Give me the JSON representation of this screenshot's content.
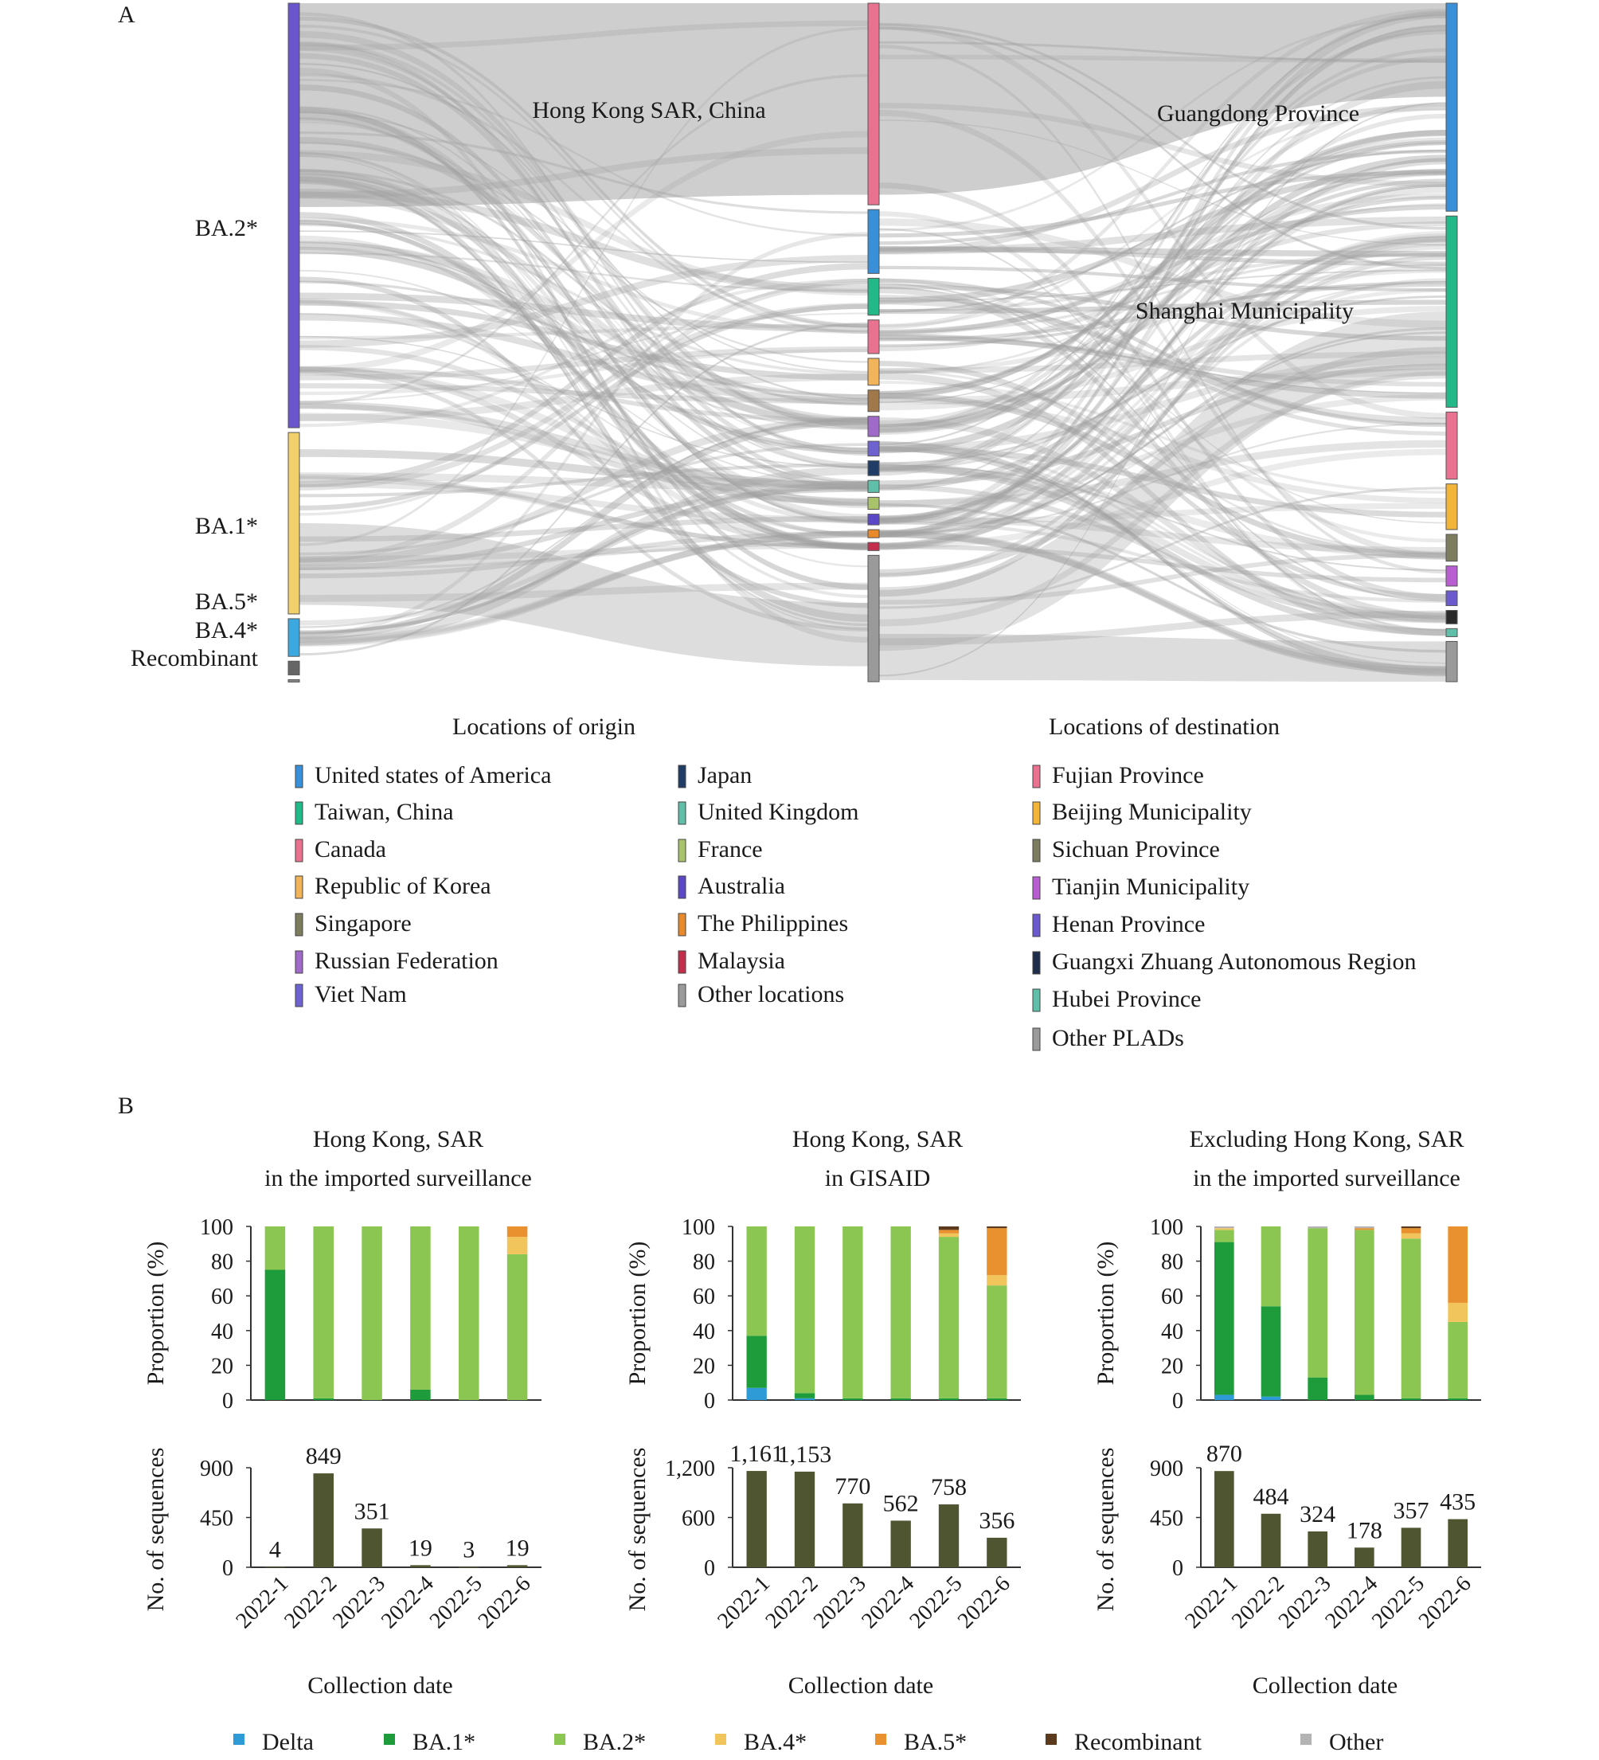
{
  "panel_a": {
    "label": "A",
    "lineage_axis": {
      "items": [
        {
          "name": "BA.2*",
          "color": "#6A55CC",
          "share": 0.62
        },
        {
          "name": "BA.1*",
          "color": "#F2D06B",
          "share": 0.265
        },
        {
          "name": "BA.5*",
          "color": "#3BA8E0",
          "share": 0.055
        },
        {
          "name": "BA.4*",
          "color": "#666666",
          "share": 0.02
        },
        {
          "name": "Recombinant",
          "color": "#888888",
          "share": 0.003
        }
      ]
    },
    "origin_node_label": "Hong Kong SAR, China",
    "destination_node_labels": [
      "Guangdong Province",
      "Shanghai Municipality"
    ],
    "origin_legend": {
      "title": "Locations of origin",
      "items": [
        {
          "name": "United states of America",
          "color": "#3A8FD9"
        },
        {
          "name": "Taiwan, China",
          "color": "#22B887"
        },
        {
          "name": "Canada",
          "color": "#E8728F"
        },
        {
          "name": "Republic of Korea",
          "color": "#F2B45A"
        },
        {
          "name": "Singapore",
          "color": "#7C7C5E"
        },
        {
          "name": "Russian Federation",
          "color": "#A06AC8"
        },
        {
          "name": "Viet Nam",
          "color": "#6D62D0"
        },
        {
          "name": "Japan",
          "color": "#1F3D66"
        },
        {
          "name": "United Kingdom",
          "color": "#5FBFA9"
        },
        {
          "name": "France",
          "color": "#A8C36A"
        },
        {
          "name": "Australia",
          "color": "#5A48C8"
        },
        {
          "name": "The Philippines",
          "color": "#E8892A"
        },
        {
          "name": "Malaysia",
          "color": "#C42E4C"
        },
        {
          "name": "Other locations",
          "color": "#9A9A9A"
        }
      ]
    },
    "destination_legend": {
      "title": "Locations of destination",
      "items": [
        {
          "name": "Fujian Province",
          "color": "#E8728F"
        },
        {
          "name": "Beijing Municipality",
          "color": "#F2B53A"
        },
        {
          "name": "Sichuan Province",
          "color": "#7C7C5E"
        },
        {
          "name": "Tianjin Municipality",
          "color": "#B85ED1"
        },
        {
          "name": "Henan Province",
          "color": "#6A5ACD"
        },
        {
          "name": "Guangxi Zhuang Autonomous Region",
          "color": "#1E2E4A"
        },
        {
          "name": "Hubei Province",
          "color": "#5FBFA9"
        },
        {
          "name": "Other PLADs",
          "color": "#9A9A9A"
        }
      ]
    },
    "middle_nodes": [
      {
        "name": "Hong Kong SAR, China",
        "color": "#E8728F",
        "share": 0.3
      },
      {
        "name": "United states of America",
        "color": "#3A8FD9",
        "share": 0.095
      },
      {
        "name": "Taiwan, China",
        "color": "#22B887",
        "share": 0.055
      },
      {
        "name": "Canada",
        "color": "#E8728F",
        "share": 0.05
      },
      {
        "name": "Republic of Korea",
        "color": "#F2B45A",
        "share": 0.04
      },
      {
        "name": "Singapore",
        "color": "#A0784A",
        "share": 0.032
      },
      {
        "name": "Russian Federation",
        "color": "#A06AC8",
        "share": 0.03
      },
      {
        "name": "Viet Nam",
        "color": "#6D62D0",
        "share": 0.022
      },
      {
        "name": "Japan",
        "color": "#1F3D66",
        "share": 0.022
      },
      {
        "name": "United Kingdom",
        "color": "#5FBFA9",
        "share": 0.018
      },
      {
        "name": "France",
        "color": "#A8C36A",
        "share": 0.018
      },
      {
        "name": "Australia",
        "color": "#5A48C8",
        "share": 0.016
      },
      {
        "name": "The Philippines",
        "color": "#E8892A",
        "share": 0.012
      },
      {
        "name": "Malaysia",
        "color": "#C42E4C",
        "share": 0.012
      },
      {
        "name": "Other locations",
        "color": "#9A9A9A",
        "share": 0.188
      }
    ],
    "right_nodes": [
      {
        "name": "Guangdong Province",
        "color": "#3A8FD9",
        "share": 0.31
      },
      {
        "name": "Shanghai Municipality",
        "color": "#22B887",
        "share": 0.285
      },
      {
        "name": "Fujian Province",
        "color": "#E8728F",
        "share": 0.1
      },
      {
        "name": "Beijing Municipality",
        "color": "#F2B53A",
        "share": 0.068
      },
      {
        "name": "Sichuan Province",
        "color": "#7C7C5E",
        "share": 0.04
      },
      {
        "name": "Tianjin Municipality",
        "color": "#B85ED1",
        "share": 0.03
      },
      {
        "name": "Henan Province",
        "color": "#6A5ACD",
        "share": 0.022
      },
      {
        "name": "Guangxi Zhuang Autonomous Region",
        "color": "#2A2A2A",
        "share": 0.02
      },
      {
        "name": "Hubei Province",
        "color": "#5FBFA9",
        "share": 0.012
      },
      {
        "name": "Other PLADs",
        "color": "#9A9A9A",
        "share": 0.06
      }
    ]
  },
  "panel_b": {
    "label": "B",
    "variants": [
      {
        "name": "Delta",
        "color": "#2E9BD6"
      },
      {
        "name": "BA.1*",
        "color": "#1E9B3A"
      },
      {
        "name": "BA.2*",
        "color": "#8CC652"
      },
      {
        "name": "BA.4*",
        "color": "#F2C55C"
      },
      {
        "name": "BA.5*",
        "color": "#E8912E"
      },
      {
        "name": "Recombinant",
        "color": "#5C3A1E"
      },
      {
        "name": "Other",
        "color": "#B3B3B3"
      }
    ],
    "xlabel": "Collection date",
    "prop_ylabel": "Proportion (%)",
    "count_ylabel": "No. of sequences",
    "bar_color": "#4F5530"
  },
  "chart_data": [
    {
      "type": "bar",
      "stacked": true,
      "title": "Hong Kong, SAR",
      "subtitle": "in the imported surveillance",
      "ylabel": "Proportion (%)",
      "ylim": [
        0,
        100
      ],
      "yticks": [
        0,
        20,
        40,
        60,
        80,
        100
      ],
      "categories": [
        "2022-1",
        "2022-2",
        "2022-3",
        "2022-4",
        "2022-5",
        "2022-6"
      ],
      "series": [
        {
          "name": "Delta",
          "values": [
            0,
            0,
            0,
            0,
            0,
            0
          ]
        },
        {
          "name": "BA.1*",
          "values": [
            75,
            1,
            0,
            6,
            0,
            0
          ]
        },
        {
          "name": "BA.2*",
          "values": [
            25,
            99,
            100,
            94,
            100,
            84
          ]
        },
        {
          "name": "BA.4*",
          "values": [
            0,
            0,
            0,
            0,
            0,
            10
          ]
        },
        {
          "name": "BA.5*",
          "values": [
            0,
            0,
            0,
            0,
            0,
            6
          ]
        },
        {
          "name": "Recombinant",
          "values": [
            0,
            0,
            0,
            0,
            0,
            0
          ]
        },
        {
          "name": "Other",
          "values": [
            0,
            0,
            0,
            0,
            0,
            0
          ]
        }
      ]
    },
    {
      "type": "bar",
      "ylabel": "No. of sequences",
      "xlabel": "Collection date",
      "ylim": [
        0,
        900
      ],
      "yticks": [
        0,
        450,
        900
      ],
      "categories": [
        "2022-1",
        "2022-2",
        "2022-3",
        "2022-4",
        "2022-5",
        "2022-6"
      ],
      "values": [
        4,
        849,
        351,
        19,
        3,
        19
      ],
      "data_labels": [
        "4",
        "849",
        "351",
        "19",
        "3",
        "19"
      ]
    },
    {
      "type": "bar",
      "stacked": true,
      "title": "Hong Kong, SAR",
      "subtitle": "in GISAID",
      "ylabel": "Proportion (%)",
      "ylim": [
        0,
        100
      ],
      "yticks": [
        0,
        20,
        40,
        60,
        80,
        100
      ],
      "categories": [
        "2022-1",
        "2022-2",
        "2022-3",
        "2022-4",
        "2022-5",
        "2022-6"
      ],
      "series": [
        {
          "name": "Delta",
          "values": [
            7,
            1,
            0,
            0,
            0,
            0
          ]
        },
        {
          "name": "BA.1*",
          "values": [
            30,
            3,
            1,
            1,
            1,
            1
          ]
        },
        {
          "name": "BA.2*",
          "values": [
            63,
            96,
            99,
            99,
            93,
            65
          ]
        },
        {
          "name": "BA.4*",
          "values": [
            0,
            0,
            0,
            0,
            2,
            6
          ]
        },
        {
          "name": "BA.5*",
          "values": [
            0,
            0,
            0,
            0,
            2,
            27
          ]
        },
        {
          "name": "Recombinant",
          "values": [
            0,
            0,
            0,
            0,
            2,
            1
          ]
        },
        {
          "name": "Other",
          "values": [
            0,
            0,
            0,
            0,
            0,
            0
          ]
        }
      ]
    },
    {
      "type": "bar",
      "ylabel": "No. of sequences",
      "xlabel": "Collection date",
      "ylim": [
        0,
        1200
      ],
      "yticks": [
        0,
        600,
        1200
      ],
      "categories": [
        "2022-1",
        "2022-2",
        "2022-3",
        "2022-4",
        "2022-5",
        "2022-6"
      ],
      "values": [
        1161,
        1153,
        770,
        562,
        758,
        356
      ],
      "data_labels": [
        "1,161",
        "1,153",
        "770",
        "562",
        "758",
        "356"
      ]
    },
    {
      "type": "bar",
      "stacked": true,
      "title": "Excluding Hong Kong, SAR",
      "subtitle": "in the imported surveillance",
      "ylabel": "Proportion (%)",
      "ylim": [
        0,
        100
      ],
      "yticks": [
        0,
        20,
        40,
        60,
        80,
        100
      ],
      "categories": [
        "2022-1",
        "2022-2",
        "2022-3",
        "2022-4",
        "2022-5",
        "2022-6"
      ],
      "series": [
        {
          "name": "Delta",
          "values": [
            3,
            2,
            0,
            0,
            0,
            0
          ]
        },
        {
          "name": "BA.1*",
          "values": [
            88,
            52,
            13,
            3,
            1,
            1
          ]
        },
        {
          "name": "BA.2*",
          "values": [
            7,
            46,
            86,
            95,
            92,
            44
          ]
        },
        {
          "name": "BA.4*",
          "values": [
            1,
            0,
            0,
            0,
            3,
            11
          ]
        },
        {
          "name": "BA.5*",
          "values": [
            0,
            0,
            0,
            1,
            3,
            44
          ]
        },
        {
          "name": "Recombinant",
          "values": [
            0,
            0,
            0,
            0,
            1,
            0
          ]
        },
        {
          "name": "Other",
          "values": [
            1,
            0,
            1,
            1,
            0,
            0
          ]
        }
      ]
    },
    {
      "type": "bar",
      "ylabel": "No. of sequences",
      "xlabel": "Collection date",
      "ylim": [
        0,
        900
      ],
      "yticks": [
        0,
        450,
        900
      ],
      "categories": [
        "2022-1",
        "2022-2",
        "2022-3",
        "2022-4",
        "2022-5",
        "2022-6"
      ],
      "values": [
        870,
        484,
        324,
        178,
        357,
        435
      ],
      "data_labels": [
        "870",
        "484",
        "324",
        "178",
        "357",
        "435"
      ]
    }
  ]
}
